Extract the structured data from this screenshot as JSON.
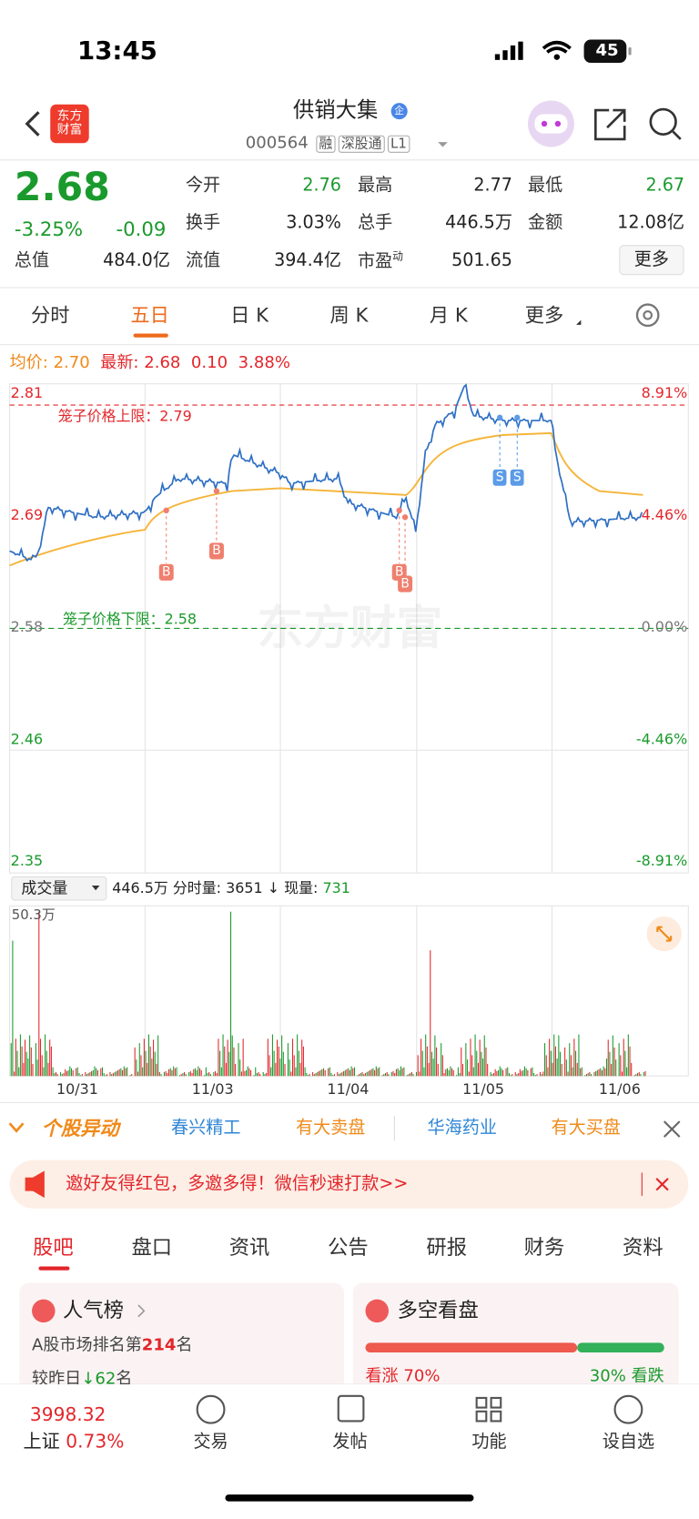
{
  "status": {
    "time": "13:45",
    "battery": "45"
  },
  "header": {
    "logo": "东方财富",
    "title": "供销大集",
    "badge": "企",
    "code": "000564",
    "tags": [
      "融",
      "深股通",
      "L1"
    ]
  },
  "quote": {
    "price": "2.68",
    "change_pct": "-3.25%",
    "change": "-0.09",
    "stats": [
      {
        "label": "今开",
        "value": "2.76"
      },
      {
        "label": "最高",
        "value": "2.77"
      },
      {
        "label": "最低",
        "value": "2.67"
      },
      {
        "label": "换手",
        "value": "3.03%"
      },
      {
        "label": "总手",
        "value": "446.5万"
      },
      {
        "label": "金额",
        "value": "12.08亿"
      },
      {
        "label": "总值",
        "value": "484.0亿"
      },
      {
        "label": "流值",
        "value": "394.4亿"
      },
      {
        "label": "市盈",
        "sup": "动",
        "value": "501.65"
      }
    ],
    "more": "更多"
  },
  "tabs": {
    "items": [
      "分时",
      "五日",
      "日 K",
      "周 K",
      "月 K",
      "更多"
    ],
    "active": 1
  },
  "chart": {
    "legend": {
      "avg_label": "均价:",
      "avg": "2.70",
      "last_label": "最新:",
      "last": "2.68",
      "change": "0.10",
      "pct": "3.88%"
    },
    "left_labels": [
      "2.81",
      "2.69",
      "2.58",
      "2.46",
      "2.35"
    ],
    "right_labels": [
      "8.91%",
      "4.46%",
      "0.00%",
      "-4.46%",
      "-8.91%"
    ],
    "upper_limit_label": "笼子价格上限：",
    "upper_limit": "2.79",
    "lower_limit_label": "笼子价格下限：",
    "lower_limit": "2.58",
    "watermark": "东方财富",
    "markers": [
      "B",
      "B",
      "B",
      "B",
      "S",
      "S"
    ],
    "volume": {
      "selector": "成交量",
      "total": "446.5万",
      "tick_label": "分时量:",
      "tick": "3651",
      "arrow": "↓",
      "now_label": "现量:",
      "now": "731",
      "max": "50.3万"
    },
    "dates": [
      "10/31",
      "11/03",
      "11/04",
      "11/05",
      "11/06"
    ]
  },
  "ticker": {
    "title": "个股异动",
    "items": [
      "春兴精工",
      "有大卖盘",
      "华海药业",
      "有大买盘"
    ]
  },
  "banner": {
    "text": "邀好友得红包，多邀多得！微信秒速打款>>"
  },
  "sections": {
    "items": [
      "股吧",
      "盘口",
      "资讯",
      "公告",
      "研报",
      "财务",
      "资料"
    ],
    "active": 0
  },
  "cards": {
    "popularity": {
      "title": "人气榜",
      "rank_prefix": "A股市场排名第",
      "rank": "214",
      "rank_suffix": "名",
      "change_prefix": "较昨日",
      "change": "62",
      "change_suffix": "名"
    },
    "sentiment": {
      "title": "多空看盘",
      "bull_label": "看涨",
      "bull": "70%",
      "bear": "30%",
      "bear_label": "看跌"
    }
  },
  "bottom": {
    "index_value": "3998.32",
    "index_name": "上证",
    "index_change": "0.73%",
    "nav": [
      "交易",
      "发帖",
      "功能",
      "设自选"
    ]
  }
}
